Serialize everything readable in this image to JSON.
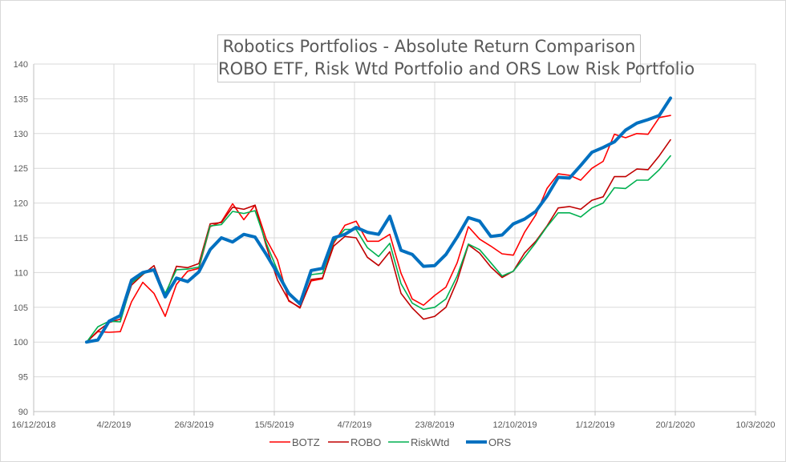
{
  "chart_data": {
    "type": "line",
    "title": [
      "Robotics Portfolios - Absolute Return Comparison",
      "ROBO ETF, Risk Wtd Portfolio and ORS Low Risk Portfolio"
    ],
    "xlabel": "",
    "ylabel": "",
    "x_ticks": [
      "16/12/2018",
      "4/2/2019",
      "26/3/2019",
      "15/5/2019",
      "4/7/2019",
      "23/8/2019",
      "12/10/2019",
      "1/12/2019",
      "20/1/2020",
      "10/3/2020"
    ],
    "y_ticks": [
      90,
      95,
      100,
      105,
      110,
      115,
      120,
      125,
      130,
      135,
      140
    ],
    "ylim": [
      90,
      140
    ],
    "grid": true,
    "legend_position": "bottom",
    "x": [
      "2019-01-18",
      "2019-01-25",
      "2019-02-01",
      "2019-02-08",
      "2019-02-15",
      "2019-02-22",
      "2019-03-01",
      "2019-03-08",
      "2019-03-15",
      "2019-03-22",
      "2019-03-29",
      "2019-04-05",
      "2019-04-12",
      "2019-04-19",
      "2019-04-26",
      "2019-05-03",
      "2019-05-10",
      "2019-05-17",
      "2019-05-24",
      "2019-05-31",
      "2019-06-07",
      "2019-06-14",
      "2019-06-21",
      "2019-06-28",
      "2019-07-05",
      "2019-07-12",
      "2019-07-19",
      "2019-07-26",
      "2019-08-02",
      "2019-08-09",
      "2019-08-16",
      "2019-08-23",
      "2019-08-30",
      "2019-09-06",
      "2019-09-13",
      "2019-09-20",
      "2019-09-27",
      "2019-10-04",
      "2019-10-11",
      "2019-10-18",
      "2019-10-25",
      "2019-11-01",
      "2019-11-08",
      "2019-11-15",
      "2019-11-22",
      "2019-11-29",
      "2019-12-06",
      "2019-12-13",
      "2019-12-20",
      "2019-12-27",
      "2020-01-03",
      "2020-01-10",
      "2020-01-17"
    ],
    "series": [
      {
        "name": "BOTZ",
        "color": "#ff0000",
        "width": 1.6,
        "values": [
          100,
          101.5,
          101.4,
          101.5,
          105.8,
          108.6,
          107.0,
          103.7,
          108.3,
          110.2,
          110.6,
          116.6,
          117.3,
          119.9,
          117.6,
          119.7,
          114.8,
          111.8,
          105.9,
          105.0,
          108.8,
          109.1,
          114.2,
          116.8,
          117.4,
          114.5,
          114.5,
          115.5,
          109.9,
          106.2,
          105.3,
          106.7,
          107.9,
          111.4,
          116.6,
          114.8,
          113.8,
          112.7,
          112.5,
          115.8,
          118.3,
          122.1,
          124.2,
          124.0,
          123.3,
          125.0,
          126.0,
          129.9,
          129.4,
          130.0,
          129.9,
          132.3,
          132.6
        ]
      },
      {
        "name": "ROBO",
        "color": "#c00000",
        "width": 1.6,
        "values": [
          100,
          101.6,
          102.8,
          103.3,
          108.2,
          109.7,
          111.0,
          106.7,
          110.9,
          110.7,
          111.3,
          117.0,
          117.2,
          119.4,
          119.1,
          119.7,
          113.8,
          108.9,
          106.0,
          104.9,
          109.0,
          109.2,
          113.8,
          115.2,
          115.0,
          112.2,
          111.0,
          113.0,
          107.0,
          104.9,
          103.3,
          103.7,
          105.0,
          108.8,
          114.0,
          112.8,
          110.8,
          109.3,
          110.2,
          112.8,
          114.5,
          116.7,
          119.3,
          119.5,
          119.1,
          120.4,
          120.9,
          123.8,
          123.8,
          124.9,
          124.8,
          126.8,
          129.1
        ]
      },
      {
        "name": "RiskWtd",
        "color": "#00b050",
        "width": 1.6,
        "values": [
          100,
          102.2,
          103.0,
          102.9,
          108.5,
          109.8,
          110.5,
          107.0,
          110.4,
          110.5,
          110.8,
          116.7,
          116.9,
          118.8,
          118.5,
          118.9,
          114.2,
          110.3,
          107.2,
          105.5,
          109.7,
          109.9,
          114.5,
          116.2,
          116.2,
          113.6,
          112.3,
          114.2,
          108.4,
          105.6,
          104.7,
          105.0,
          106.2,
          109.5,
          114.1,
          113.3,
          111.4,
          109.5,
          110.2,
          112.2,
          114.3,
          116.6,
          118.6,
          118.6,
          118.0,
          119.3,
          120.0,
          122.2,
          122.1,
          123.3,
          123.3,
          124.8,
          126.8
        ]
      },
      {
        "name": "ORS",
        "color": "#0070c0",
        "width": 4,
        "values": [
          100,
          100.3,
          103.0,
          103.8,
          108.9,
          110.0,
          110.4,
          106.5,
          109.2,
          108.7,
          110.1,
          113.3,
          115.0,
          114.4,
          115.5,
          115.1,
          112.6,
          109.9,
          107.0,
          105.5,
          110.3,
          110.6,
          115.0,
          115.5,
          116.5,
          115.8,
          115.5,
          118.1,
          113.2,
          112.6,
          110.9,
          111.0,
          112.6,
          115.1,
          117.9,
          117.4,
          115.2,
          115.4,
          117.0,
          117.7,
          118.8,
          121.0,
          123.7,
          123.6,
          125.4,
          127.3,
          128.0,
          128.8,
          130.5,
          131.5,
          132.0,
          132.6,
          135.1
        ]
      }
    ]
  }
}
